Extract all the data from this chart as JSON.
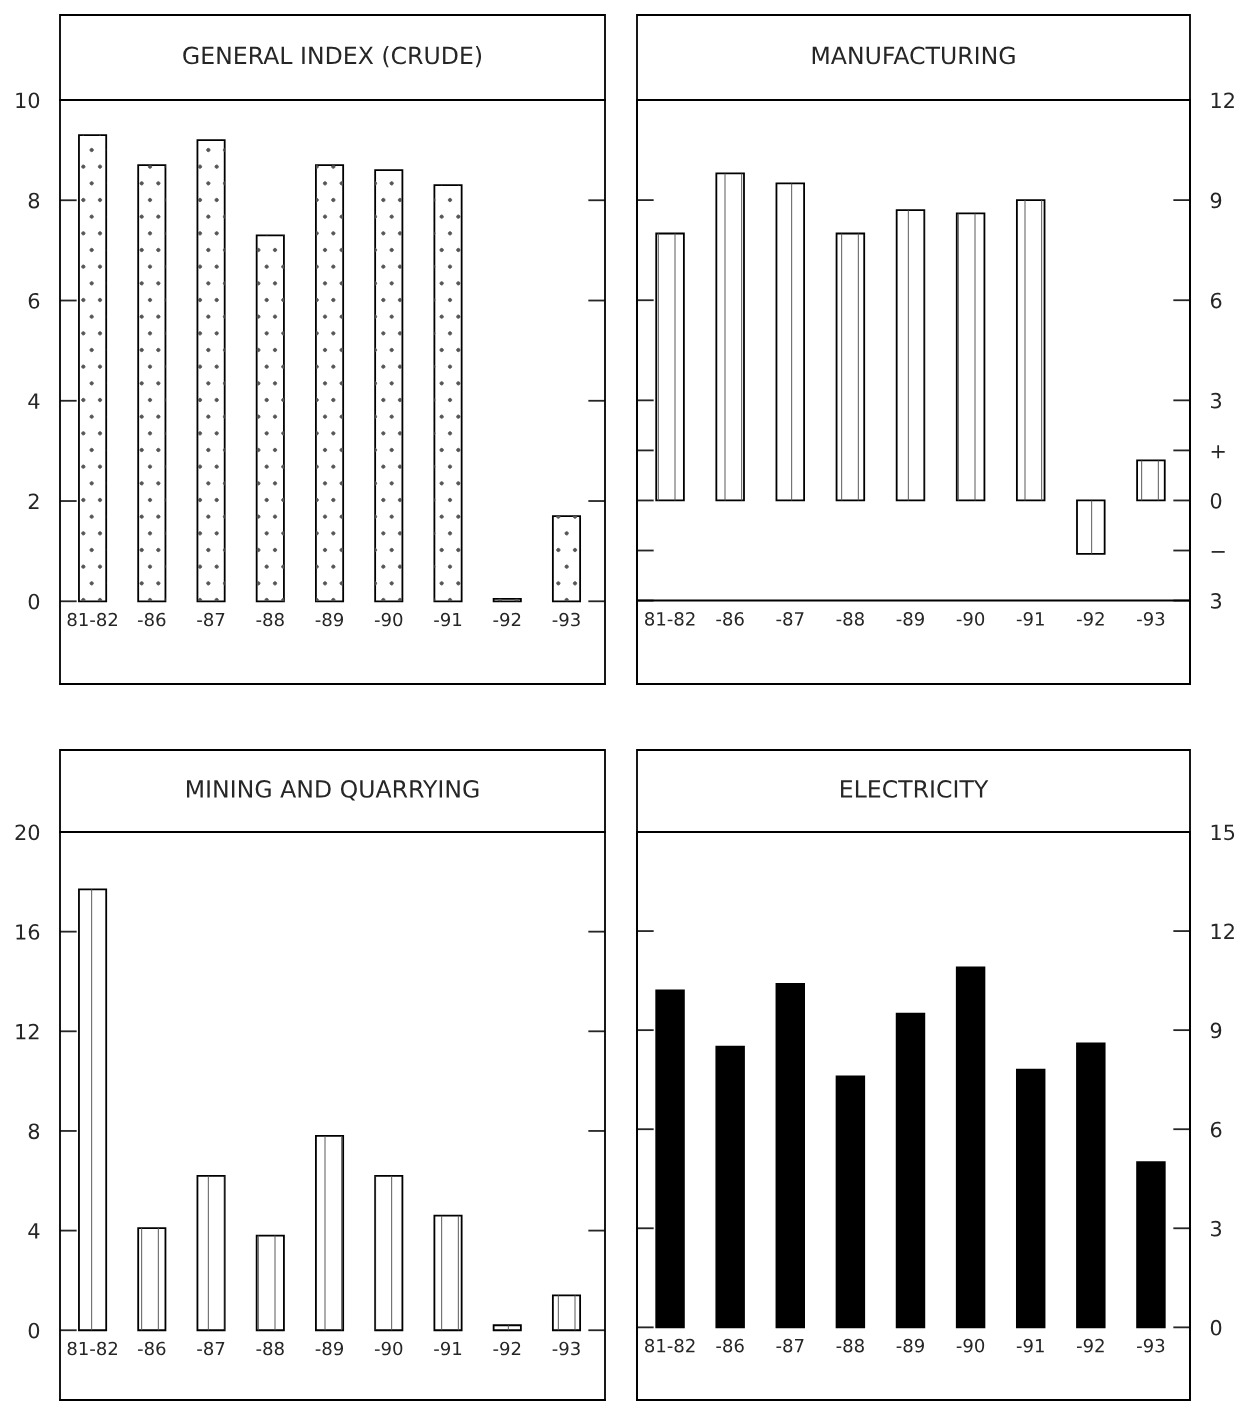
{
  "chart_data": [
    {
      "type": "bar",
      "title": "GENERAL INDEX (CRUDE)",
      "categories": [
        "81-82",
        "-86",
        "-87",
        "-88",
        "-89",
        "-90",
        "-91",
        "-92",
        "-93"
      ],
      "values": [
        9.3,
        8.7,
        9.2,
        7.3,
        8.7,
        8.6,
        8.3,
        0.05,
        1.7
      ],
      "color": "#ffffff",
      "ylim": [
        -1.65,
        10
      ],
      "yticks": [
        0,
        2,
        4,
        6,
        8,
        10
      ],
      "grid": false
    },
    {
      "type": "bar",
      "title": "MANUFACTURING",
      "categories": [
        "81-82",
        "-86",
        "-87",
        "-88",
        "-89",
        "-90",
        "-91",
        "-92",
        "-93"
      ],
      "series": [
        {
          "color": "#ffffff",
          "axis": "y2",
          "values": [
            8.0,
            9.8,
            9.5,
            8.0,
            8.7,
            8.6,
            9.0,
            -1.6,
            1.2
          ]
        }
      ],
      "y2lim": [
        -5.5,
        12
      ],
      "y2ticks": [
        12,
        9,
        6,
        3,
        {
          "value": 1.5,
          "label": "+"
        },
        0,
        {
          "value": -1.5,
          "label": "−"
        },
        {
          "value": -3,
          "label": "3"
        }
      ],
      "ref_lines": [
        {
          "axis": "y2",
          "value": -3
        }
      ],
      "grid": false
    },
    {
      "type": "bar",
      "title": "MINING AND QUARRYING",
      "categories": [
        "81-82",
        "-86",
        "-87",
        "-88",
        "-89",
        "-90",
        "-91",
        "-92",
        "-93"
      ],
      "values": [
        17.7,
        4.1,
        6.2,
        3.8,
        7.8,
        6.2,
        4.6,
        0.2,
        1.4
      ],
      "color": "#ffffff",
      "ylim": [
        -2.8,
        20
      ],
      "yticks": [
        0,
        4,
        8,
        12,
        16,
        20
      ],
      "grid": false
    },
    {
      "type": "bar",
      "title": "ELECTRICITY",
      "categories": [
        "81-82",
        "-86",
        "-87",
        "-88",
        "-89",
        "-90",
        "-91",
        "-92",
        "-93"
      ],
      "series": [
        {
          "color": "#000000",
          "axis": "y2",
          "values": [
            10.2,
            8.5,
            10.4,
            7.6,
            9.5,
            10.9,
            7.8,
            8.6,
            5.0
          ]
        }
      ],
      "y2lim": [
        -2.2,
        15
      ],
      "y2ticks": [
        0,
        3,
        6,
        9,
        12,
        15
      ],
      "grid": false
    }
  ]
}
